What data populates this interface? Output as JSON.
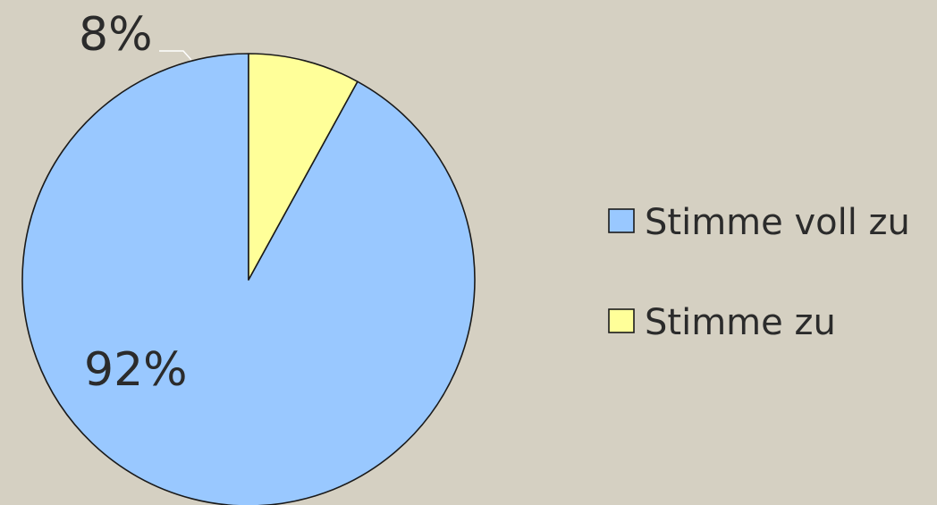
{
  "chart_data": {
    "type": "pie",
    "title": "",
    "categories": [
      "Stimme voll zu",
      "Stimme zu"
    ],
    "values": [
      92,
      8
    ],
    "data_labels": [
      "92%",
      "8%"
    ],
    "colors": [
      "#99c8ff",
      "#ffff99"
    ],
    "start_angle": "12 o'clock, counter-clockwise",
    "legend_position": "right"
  }
}
